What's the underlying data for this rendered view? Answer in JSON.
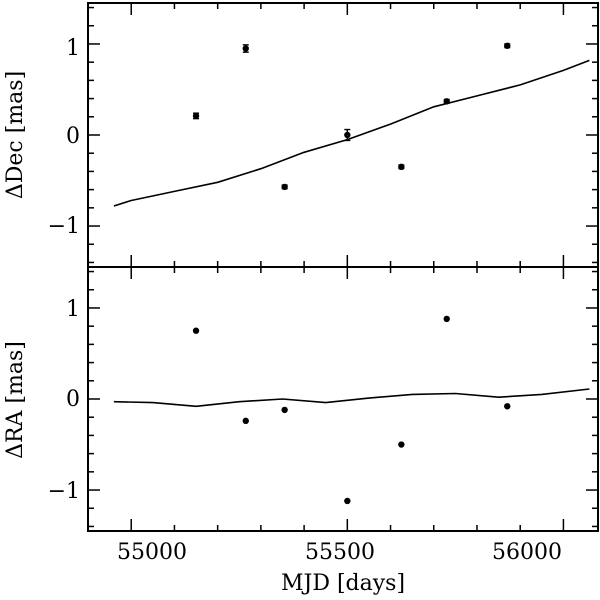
{
  "chart_data": [
    {
      "type": "scatter",
      "panel": "top",
      "ylabel": "ΔDec [mas]",
      "xlabel": "",
      "xlim": [
        54900,
        56080
      ],
      "ylim": [
        -1.45,
        1.45
      ],
      "x_ticks": [
        55000,
        55500,
        56000
      ],
      "y_ticks": [
        1,
        0,
        -1
      ],
      "y_tick_labels": [
        "1",
        "0",
        "−1"
      ],
      "series": [
        {
          "kind": "points",
          "x": [
            55150,
            55265,
            55355,
            55500,
            55625,
            55730,
            55870
          ],
          "y": [
            0.21,
            0.95,
            -0.57,
            0.0,
            -0.35,
            0.37,
            0.98
          ],
          "yerr": [
            0.03,
            0.04,
            0.02,
            0.06,
            0.02,
            0.02,
            0.02
          ]
        },
        {
          "kind": "line",
          "x": [
            54960,
            55000,
            55100,
            55200,
            55300,
            55400,
            55500,
            55600,
            55700,
            55800,
            55900,
            56000,
            56060
          ],
          "y": [
            -0.78,
            -0.72,
            -0.62,
            -0.52,
            -0.37,
            -0.19,
            -0.05,
            0.12,
            0.31,
            0.43,
            0.55,
            0.71,
            0.82
          ]
        }
      ]
    },
    {
      "type": "scatter",
      "panel": "bottom",
      "ylabel": "ΔRA [mas]",
      "xlabel": "MJD [days]",
      "xlim": [
        54900,
        56080
      ],
      "ylim": [
        -1.45,
        1.45
      ],
      "x_ticks": [
        55000,
        55500,
        56000
      ],
      "x_tick_labels": [
        "55000",
        "55500",
        "56000"
      ],
      "y_ticks": [
        1,
        0,
        -1
      ],
      "y_tick_labels": [
        "1",
        "0",
        "−1"
      ],
      "series": [
        {
          "kind": "points",
          "x": [
            55150,
            55265,
            55355,
            55500,
            55625,
            55730,
            55870
          ],
          "y": [
            0.75,
            -0.24,
            -0.12,
            -1.12,
            -0.5,
            0.88,
            -0.08
          ]
        },
        {
          "kind": "line",
          "x": [
            54960,
            55050,
            55150,
            55250,
            55350,
            55450,
            55550,
            55650,
            55750,
            55850,
            55950,
            56060
          ],
          "y": [
            -0.03,
            -0.04,
            -0.08,
            -0.03,
            0.0,
            -0.04,
            0.01,
            0.05,
            0.06,
            0.02,
            0.05,
            0.11
          ]
        }
      ]
    }
  ]
}
